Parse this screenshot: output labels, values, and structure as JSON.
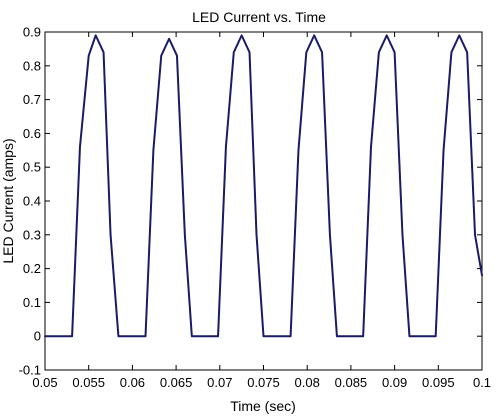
{
  "chart_data": {
    "type": "line",
    "title": "LED Current vs. Time",
    "xlabel": "Time (sec)",
    "ylabel": "LED Current (amps)",
    "xlim": [
      0.05,
      0.1
    ],
    "ylim": [
      -0.1,
      0.9
    ],
    "xticks": [
      "0.05",
      "0.055",
      "0.06",
      "0.065",
      "0.07",
      "0.075",
      "0.08",
      "0.085",
      "0.09",
      "0.095",
      "0.1"
    ],
    "yticks": [
      "-0.1",
      "0",
      "0.1",
      "0.2",
      "0.3",
      "0.4",
      "0.5",
      "0.6",
      "0.7",
      "0.8",
      "0.9"
    ],
    "grid": false,
    "line_color": "#1a1a66",
    "series": [
      {
        "x": [
          0.05,
          0.0531,
          0.054,
          0.055,
          0.0558,
          0.0567,
          0.0575,
          0.0584,
          0.0615,
          0.0624,
          0.0633,
          0.0642,
          0.0651,
          0.066,
          0.0668,
          0.0698,
          0.0707,
          0.0716,
          0.0725,
          0.0734,
          0.0742,
          0.075,
          0.0781,
          0.079,
          0.0799,
          0.0808,
          0.0817,
          0.0826,
          0.0834,
          0.0864,
          0.0873,
          0.0882,
          0.0891,
          0.09,
          0.0909,
          0.0917,
          0.0947,
          0.0956,
          0.0965,
          0.0974,
          0.0983,
          0.0992,
          0.1
        ],
        "y": [
          0,
          0,
          0.56,
          0.83,
          0.89,
          0.84,
          0.3,
          0,
          0,
          0.55,
          0.83,
          0.88,
          0.83,
          0.3,
          0,
          0,
          0.56,
          0.84,
          0.89,
          0.84,
          0.3,
          0,
          0,
          0.55,
          0.84,
          0.89,
          0.84,
          0.3,
          0,
          0,
          0.56,
          0.84,
          0.89,
          0.84,
          0.3,
          0,
          0,
          0.55,
          0.84,
          0.89,
          0.84,
          0.3,
          0.18
        ]
      }
    ]
  }
}
